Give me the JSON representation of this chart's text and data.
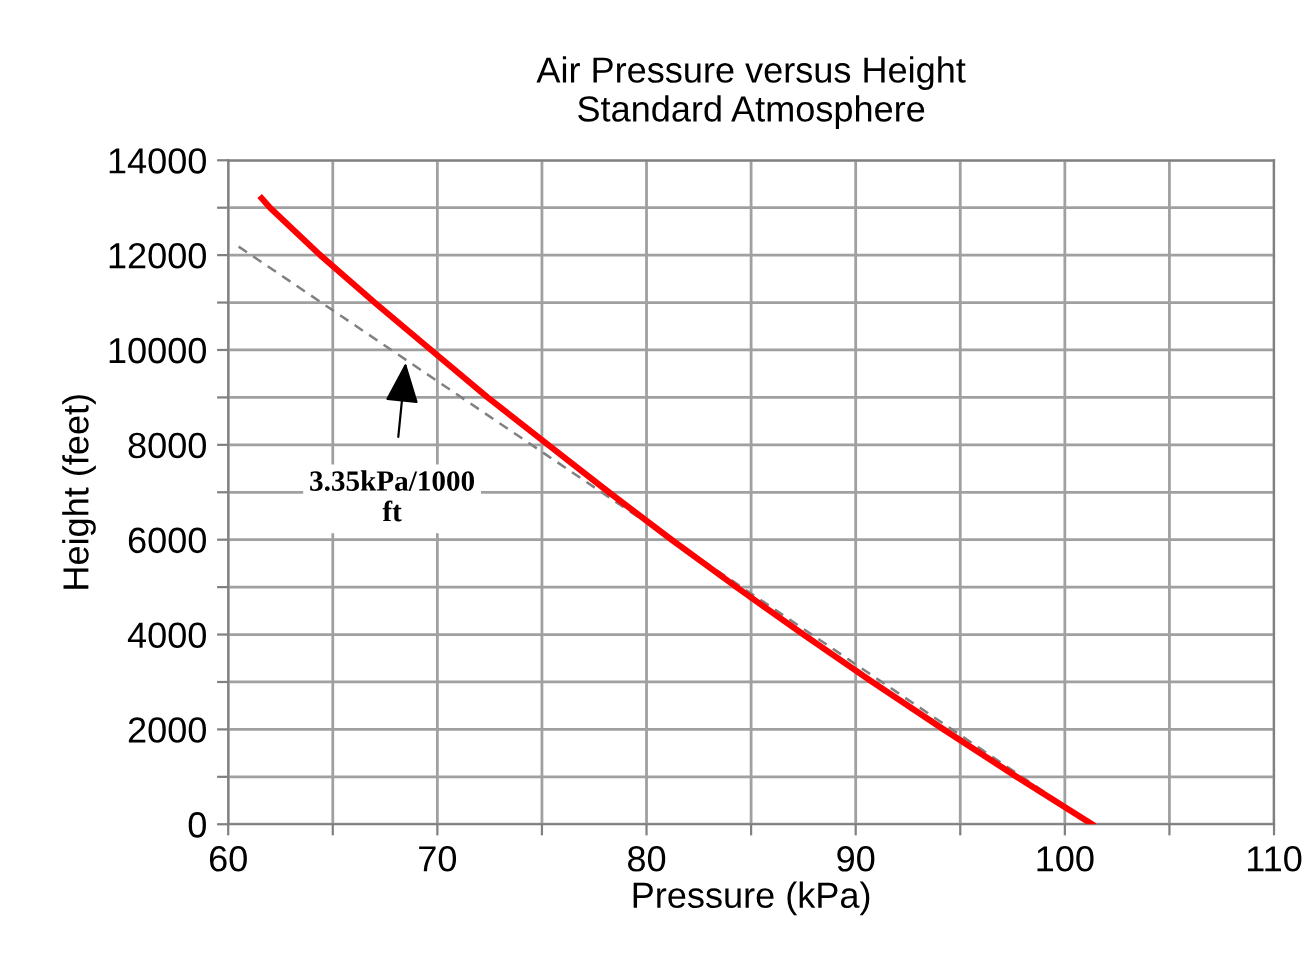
{
  "chart_data": {
    "type": "line",
    "title": "Air Pressure versus Height\nStandard Atmosphere",
    "xlabel": "Pressure (kPa)",
    "ylabel": "Height (feet)",
    "series": [
      {
        "color": "#ff0000",
        "x": [
          61.6,
          62.0,
          64.4,
          67.0,
          69.7,
          72.4,
          75.3,
          78.2,
          81.2,
          84.3,
          87.5,
          90.8,
          94.2,
          97.7,
          101.3
        ],
        "values": [
          13200,
          13000,
          12000,
          11000,
          10000,
          9000,
          8000,
          7000,
          6000,
          5000,
          4000,
          3000,
          2000,
          1000,
          0
        ],
        "line_style": "solid"
      },
      {
        "color": "#808080",
        "x": [
          60.5,
          101.3
        ],
        "values": [
          12180,
          0
        ],
        "line_style": "dashed"
      }
    ],
    "annotations": [
      {
        "text": "3.35kPa/1000\nft",
        "x": 68.5,
        "y": 9790
      }
    ],
    "xlim": [
      60,
      110
    ],
    "ylim": [
      0,
      14000
    ],
    "xticks": [
      60,
      {
        "value": 65,
        "label": null
      },
      70,
      {
        "value": 75,
        "label": null
      },
      80,
      {
        "value": 85,
        "label": null
      },
      90,
      {
        "value": 95,
        "label": null
      },
      100,
      {
        "value": 105,
        "label": null
      },
      110
    ],
    "yticks": [
      0,
      {
        "value": 1000,
        "label": null
      },
      2000,
      {
        "value": 3000,
        "label": null
      },
      4000,
      {
        "value": 5000,
        "label": null
      },
      6000,
      {
        "value": 7000,
        "label": null
      },
      8000,
      {
        "value": 9000,
        "label": null
      },
      10000,
      {
        "value": 11000,
        "label": null
      },
      12000,
      {
        "value": 13000,
        "label": null
      },
      14000
    ],
    "grid": true,
    "legend": false,
    "marker": "none"
  }
}
